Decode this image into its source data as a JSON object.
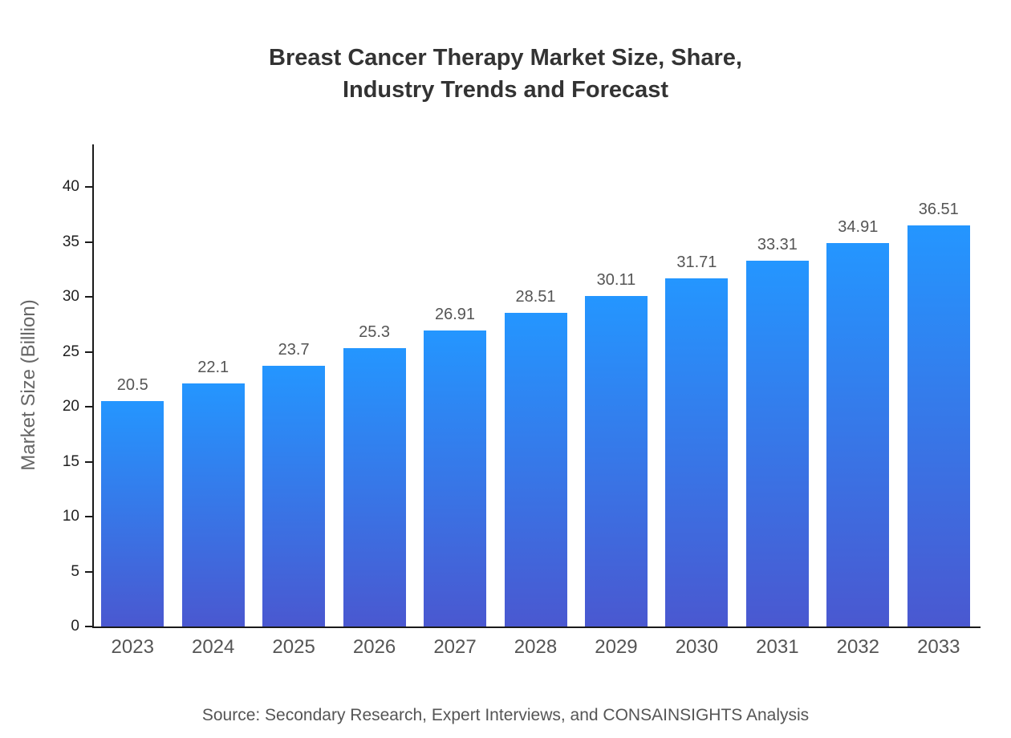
{
  "title": {
    "line1": "Breast Cancer Therapy Market Size, Share,",
    "line2": "Industry Trends and Forecast"
  },
  "footer": {
    "source": "Source: Secondary Research, Expert Interviews, and CONSAINSIGHTS Analysis"
  },
  "chart_data": {
    "type": "bar",
    "title": "Breast Cancer Therapy Market Size, Share, Industry Trends and Forecast",
    "categories": [
      "2023",
      "2024",
      "2025",
      "2026",
      "2027",
      "2028",
      "2029",
      "2030",
      "2031",
      "2032",
      "2033"
    ],
    "values": [
      20.5,
      22.1,
      23.7,
      25.3,
      26.91,
      28.51,
      30.11,
      31.71,
      33.31,
      34.91,
      36.51
    ],
    "value_labels": [
      "20.5",
      "22.1",
      "23.7",
      "25.3",
      "26.91",
      "28.51",
      "30.11",
      "31.71",
      "33.31",
      "34.91",
      "36.51"
    ],
    "xlabel": "",
    "ylabel": "Market Size (Billion)",
    "ylim": [
      0,
      40
    ],
    "yticks": [
      0,
      5,
      10,
      15,
      20,
      25,
      30,
      35,
      40
    ],
    "grid": false,
    "legend": false,
    "bar_gradient": {
      "top": "#2496ff",
      "bottom": "#4a58d0"
    }
  }
}
